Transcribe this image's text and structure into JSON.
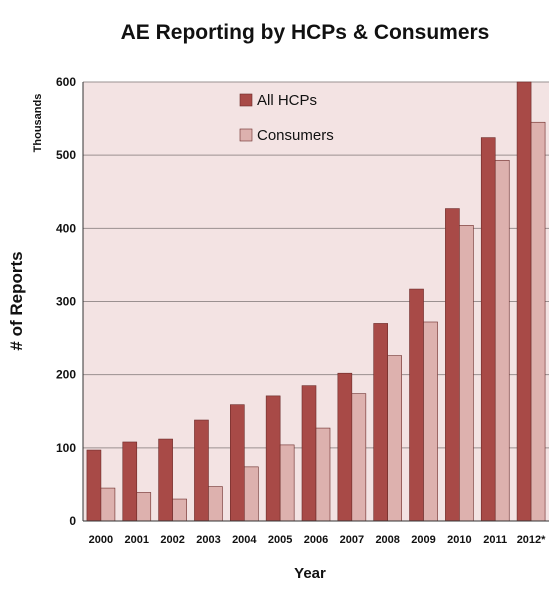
{
  "chart_data": {
    "type": "bar",
    "title": "AE Reporting by HCPs & Consumers",
    "xlabel": "Year",
    "ylabel": "# of Reports",
    "yunit_label": "Thousands",
    "ylim": [
      0,
      600
    ],
    "yticks": [
      0,
      100,
      200,
      300,
      400,
      500,
      600
    ],
    "grid": true,
    "legend_position": "top-center",
    "categories": [
      "2000",
      "2001",
      "2002",
      "2003",
      "2004",
      "2005",
      "2006",
      "2007",
      "2008",
      "2009",
      "2010",
      "2011",
      "2012*"
    ],
    "series": [
      {
        "name": "All HCPs",
        "color": "#a84a47",
        "values": [
          97,
          108,
          112,
          138,
          159,
          171,
          185,
          202,
          270,
          317,
          427,
          524,
          600
        ]
      },
      {
        "name": "Consumers",
        "color": "#ddb1ae",
        "values": [
          45,
          39,
          30,
          47,
          74,
          104,
          127,
          174,
          226,
          272,
          404,
          493,
          545
        ]
      }
    ],
    "colors": {
      "plot_background": "#f3e3e3",
      "grid": "#9a9090"
    }
  }
}
